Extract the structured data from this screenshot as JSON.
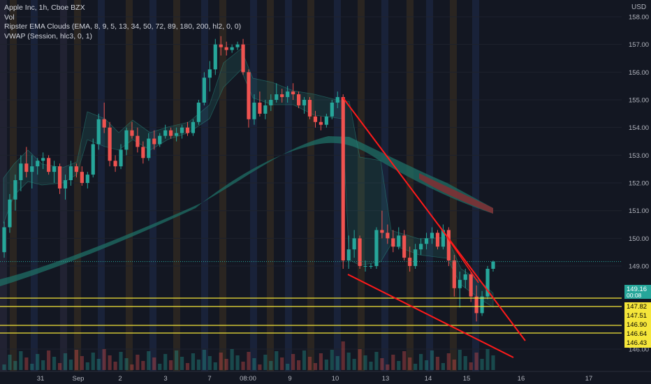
{
  "legend": {
    "title": "Apple Inc, 1h, Cboe BZX",
    "vol": "Vol",
    "ema": "Ripster EMA Clouds (EMA, 8, 9, 5, 13, 34, 50, 72, 89, 180, 200, hl2, 0, 0)",
    "vwap": "VWAP (Session, hlc3, 0, 1)"
  },
  "currency": "USD",
  "colors": {
    "background": "#131722",
    "up": "#26a69a",
    "down": "#ef5350",
    "level_line": "#f5e63a",
    "trend_line": "#ff1a1a",
    "axis_text": "#b2b5be"
  },
  "price_labels": [
    {
      "text": "149.16",
      "sub": "00:08",
      "color": "#26a69a",
      "text_color": "#ffffff",
      "price": 149.16
    },
    {
      "text": "147.82",
      "color": "#f5e63a",
      "text_color": "#000000",
      "price": 147.82
    },
    {
      "text": "147.51",
      "color": "#f5e63a",
      "text_color": "#000000",
      "price": 147.51
    },
    {
      "text": "146.90",
      "color": "#f5e63a",
      "text_color": "#000000",
      "price": 146.9
    },
    {
      "text": "146.64",
      "color": "#f5e63a",
      "text_color": "#000000",
      "price": 146.64
    },
    {
      "text": "146.43",
      "color": "#f5e63a",
      "text_color": "#000000",
      "price": 146.43
    }
  ],
  "chart_data": {
    "type": "candlestick",
    "y_ticks": [
      "158.00",
      "157.00",
      "156.00",
      "155.00",
      "154.00",
      "153.00",
      "152.00",
      "151.00",
      "150.00",
      "149.00",
      "146.00"
    ],
    "y_tick_values": [
      158,
      157,
      156,
      155,
      154,
      153,
      152,
      151,
      150,
      149,
      146
    ],
    "x_ticks": [
      "31",
      "Sep",
      "2",
      "3",
      "7",
      "08:00",
      "9",
      "10",
      "13",
      "14",
      "15",
      "16",
      "17"
    ],
    "support_levels": [
      147.82,
      147.51,
      146.9,
      146.64
    ],
    "current_price": 149.16,
    "ylim": [
      145.6,
      158.4
    ],
    "ohlc": [
      [
        149.5,
        150.6,
        149.3,
        150.4
      ],
      [
        150.4,
        151.6,
        150.2,
        151.4
      ],
      [
        151.4,
        152.3,
        151.0,
        152.1
      ],
      [
        152.1,
        153.0,
        151.7,
        152.7
      ],
      [
        152.7,
        153.3,
        152.2,
        152.4
      ],
      [
        152.4,
        153.0,
        151.8,
        152.6
      ],
      [
        152.6,
        152.9,
        152.3,
        152.8
      ],
      [
        152.8,
        153.1,
        152.5,
        152.9
      ],
      [
        152.9,
        153.0,
        152.3,
        152.4
      ],
      [
        152.4,
        152.8,
        152.0,
        152.6
      ],
      [
        152.6,
        152.7,
        151.6,
        151.8
      ],
      [
        151.8,
        152.3,
        151.4,
        152.1
      ],
      [
        152.1,
        152.8,
        151.9,
        152.6
      ],
      [
        152.6,
        152.7,
        152.2,
        152.4
      ],
      [
        152.4,
        152.6,
        151.9,
        152.0
      ],
      [
        152.0,
        152.4,
        151.8,
        152.3
      ],
      [
        152.3,
        153.6,
        152.2,
        153.4
      ],
      [
        153.4,
        154.5,
        153.2,
        154.3
      ],
      [
        154.3,
        154.9,
        153.8,
        154.0
      ],
      [
        154.0,
        154.2,
        152.6,
        152.8
      ],
      [
        152.8,
        153.0,
        152.4,
        152.6
      ],
      [
        152.6,
        153.4,
        152.5,
        153.2
      ],
      [
        153.2,
        154.0,
        153.0,
        153.9
      ],
      [
        153.9,
        154.2,
        153.6,
        153.7
      ],
      [
        153.7,
        154.0,
        153.1,
        153.3
      ],
      [
        153.3,
        153.5,
        152.7,
        152.9
      ],
      [
        152.9,
        153.8,
        152.8,
        153.6
      ],
      [
        153.6,
        153.9,
        153.2,
        153.4
      ],
      [
        153.4,
        153.8,
        153.3,
        153.7
      ],
      [
        153.7,
        154.1,
        153.6,
        153.9
      ],
      [
        153.9,
        154.0,
        153.6,
        153.7
      ],
      [
        153.7,
        154.0,
        153.5,
        153.8
      ],
      [
        153.8,
        154.1,
        153.6,
        154.0
      ],
      [
        154.0,
        154.2,
        153.7,
        153.8
      ],
      [
        153.8,
        154.3,
        153.7,
        154.2
      ],
      [
        154.2,
        155.0,
        154.1,
        154.9
      ],
      [
        154.9,
        156.0,
        154.8,
        155.8
      ],
      [
        155.8,
        156.4,
        155.3,
        156.1
      ],
      [
        156.1,
        157.2,
        155.9,
        157.0
      ],
      [
        157.0,
        157.3,
        156.6,
        156.9
      ],
      [
        156.9,
        157.1,
        156.6,
        156.8
      ],
      [
        156.8,
        157.0,
        156.7,
        156.9
      ],
      [
        156.9,
        157.1,
        156.8,
        157.0
      ],
      [
        157.0,
        157.2,
        155.9,
        156.0
      ],
      [
        156.0,
        156.1,
        154.0,
        154.3
      ],
      [
        154.3,
        155.2,
        154.1,
        154.9
      ],
      [
        154.9,
        155.3,
        154.4,
        154.5
      ],
      [
        154.5,
        155.0,
        154.3,
        154.8
      ],
      [
        154.8,
        155.2,
        154.6,
        155.0
      ],
      [
        155.0,
        155.6,
        154.9,
        155.2
      ],
      [
        155.2,
        155.4,
        154.9,
        155.1
      ],
      [
        155.1,
        155.5,
        154.9,
        155.3
      ],
      [
        155.3,
        155.6,
        155.0,
        155.2
      ],
      [
        155.2,
        155.3,
        154.7,
        154.8
      ],
      [
        154.8,
        155.1,
        154.5,
        155.0
      ],
      [
        155.0,
        155.1,
        154.3,
        154.4
      ],
      [
        154.4,
        154.6,
        154.0,
        154.2
      ],
      [
        154.2,
        154.4,
        153.9,
        154.1
      ],
      [
        154.1,
        154.5,
        154.0,
        154.4
      ],
      [
        154.4,
        155.0,
        154.3,
        154.9
      ],
      [
        154.9,
        155.3,
        154.7,
        155.1
      ],
      [
        155.1,
        155.2,
        148.9,
        149.2
      ],
      [
        149.2,
        150.1,
        148.9,
        149.6
      ],
      [
        149.6,
        150.3,
        149.3,
        150.0
      ],
      [
        150.0,
        150.1,
        148.9,
        149.0
      ],
      [
        149.0,
        149.2,
        148.8,
        149.0
      ],
      [
        149.0,
        149.1,
        148.9,
        149.0
      ],
      [
        149.0,
        150.4,
        148.9,
        150.3
      ],
      [
        150.3,
        151.0,
        150.0,
        150.2
      ],
      [
        150.2,
        150.5,
        149.8,
        150.0
      ],
      [
        150.0,
        150.3,
        149.5,
        149.7
      ],
      [
        149.7,
        150.4,
        149.6,
        150.1
      ],
      [
        150.1,
        150.3,
        149.2,
        149.3
      ],
      [
        149.3,
        149.7,
        148.8,
        149.0
      ],
      [
        149.0,
        149.8,
        148.9,
        149.6
      ],
      [
        149.6,
        150.0,
        149.4,
        149.8
      ],
      [
        149.8,
        150.2,
        149.6,
        150.0
      ],
      [
        150.0,
        150.4,
        149.8,
        150.2
      ],
      [
        150.2,
        150.3,
        149.6,
        149.7
      ],
      [
        149.7,
        150.5,
        149.6,
        150.3
      ],
      [
        150.3,
        150.4,
        149.0,
        149.2
      ],
      [
        149.2,
        149.4,
        147.9,
        148.2
      ],
      [
        148.2,
        148.8,
        147.5,
        148.5
      ],
      [
        148.5,
        148.9,
        148.2,
        148.7
      ],
      [
        148.7,
        148.8,
        147.7,
        147.9
      ],
      [
        147.9,
        148.3,
        147.0,
        147.3
      ],
      [
        147.3,
        148.1,
        147.2,
        147.9
      ],
      [
        147.9,
        149.0,
        147.8,
        148.9
      ],
      [
        148.9,
        149.2,
        148.8,
        149.16
      ]
    ]
  }
}
